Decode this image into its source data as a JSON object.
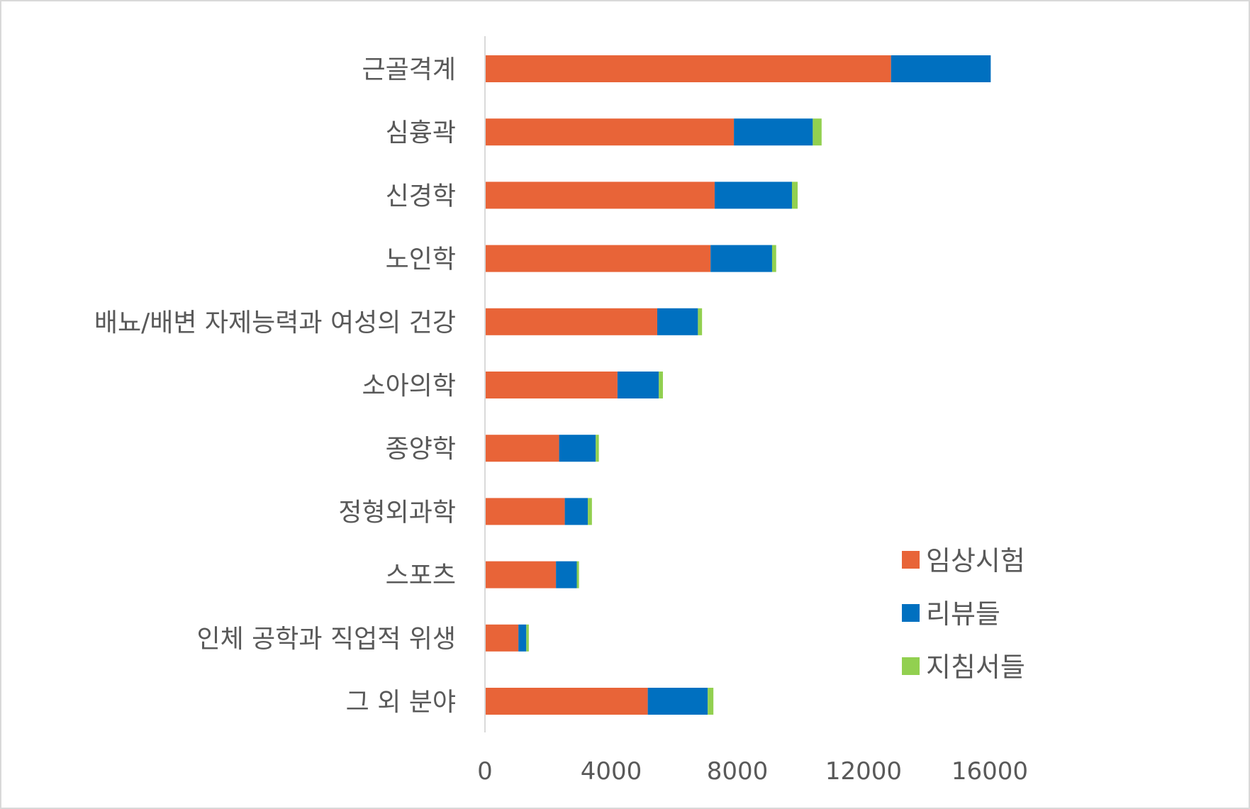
{
  "chart_data": {
    "type": "bar",
    "orientation": "horizontal",
    "stacked": true,
    "title": "",
    "xlabel": "",
    "ylabel": "",
    "categories": [
      "근골격계",
      "심흉곽",
      "신경학",
      "노인학",
      "배뇨/배변 자제능력과 여성의 건강",
      "소아의학",
      "종양학",
      "정형외과학",
      "스포츠",
      "인체 공학과 직업적 위생",
      "그 외 분야"
    ],
    "series": [
      {
        "name": "임상시험",
        "color": "#e86438",
        "values": [
          12870,
          7890,
          7280,
          7150,
          5460,
          4200,
          2350,
          2530,
          2250,
          1060,
          5160
        ]
      },
      {
        "name": "리뷰들",
        "color": "#0070c0",
        "values": [
          3160,
          2500,
          2450,
          1950,
          1290,
          1310,
          1160,
          730,
          660,
          250,
          1900
        ]
      },
      {
        "name": "지침서들",
        "color": "#92d050",
        "values": [
          0,
          280,
          180,
          130,
          130,
          130,
          100,
          130,
          70,
          80,
          180
        ]
      }
    ],
    "xlim": [
      0,
      16000
    ],
    "xticks": [
      "0",
      "4000",
      "8000",
      "12000",
      "16000"
    ],
    "grid": false,
    "legend_position": "right"
  }
}
